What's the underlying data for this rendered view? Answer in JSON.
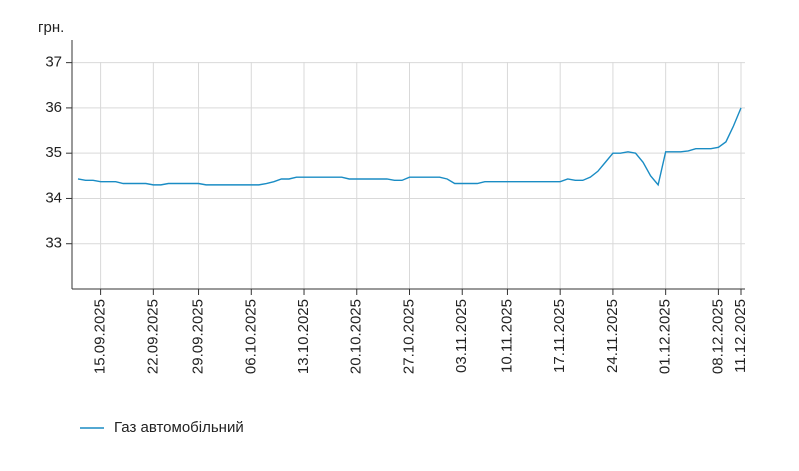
{
  "chart_data": {
    "type": "line",
    "y_label": "грн.",
    "x": [
      "12.09.2025",
      "13.09.2025",
      "14.09.2025",
      "15.09.2025",
      "16.09.2025",
      "17.09.2025",
      "18.09.2025",
      "19.09.2025",
      "20.09.2025",
      "21.09.2025",
      "22.09.2025",
      "23.09.2025",
      "24.09.2025",
      "26.09.2025",
      "27.09.2025",
      "28.09.2025",
      "29.09.2025",
      "30.09.2025",
      "01.10.2025",
      "02.10.2025",
      "03.10.2025",
      "04.10.2025",
      "05.10.2025",
      "06.10.2025",
      "07.10.2025",
      "08.10.2025",
      "09.10.2025",
      "10.10.2025",
      "11.10.2025",
      "12.10.2025",
      "13.10.2025",
      "14.10.2025",
      "15.10.2025",
      "16.10.2025",
      "17.10.2025",
      "18.10.2025",
      "19.10.2025",
      "20.10.2025",
      "21.10.2025",
      "22.10.2025",
      "23.10.2025",
      "24.10.2025",
      "25.10.2025",
      "26.10.2025",
      "27.10.2025",
      "28.10.2025",
      "29.10.2025",
      "30.10.2025",
      "31.10.2025",
      "01.11.2025",
      "02.11.2025",
      "03.11.2025",
      "04.11.2025",
      "05.11.2025",
      "07.11.2025",
      "08.11.2025",
      "09.11.2025",
      "10.11.2025",
      "11.11.2025",
      "12.11.2025",
      "13.11.2025",
      "14.11.2025",
      "15.11.2025",
      "16.11.2025",
      "17.11.2025",
      "18.11.2025",
      "19.11.2025",
      "20.11.2025",
      "21.11.2025",
      "22.11.2025",
      "23.11.2025",
      "24.11.2025",
      "25.11.2025",
      "26.11.2025",
      "27.11.2025",
      "28.11.2025",
      "29.11.2025",
      "30.11.2025",
      "01.12.2025",
      "02.12.2025",
      "03.12.2025",
      "04.12.2025",
      "05.12.2025",
      "06.12.2025",
      "07.12.2025",
      "08.12.2025",
      "09.12.2025",
      "10.12.2025",
      "11.12.2025"
    ],
    "series": [
      {
        "name": "Газ автомобільний",
        "color": "#1a8cc4",
        "values": [
          34.43,
          34.4,
          34.4,
          34.37,
          34.37,
          34.37,
          34.33,
          34.33,
          34.33,
          34.33,
          34.3,
          34.3,
          34.33,
          34.33,
          34.33,
          34.33,
          34.33,
          34.3,
          34.3,
          34.3,
          34.3,
          34.3,
          34.3,
          34.3,
          34.3,
          34.33,
          34.37,
          34.43,
          34.43,
          34.47,
          34.47,
          34.47,
          34.47,
          34.47,
          34.47,
          34.47,
          34.43,
          34.43,
          34.43,
          34.43,
          34.43,
          34.43,
          34.4,
          34.4,
          34.47,
          34.47,
          34.47,
          34.47,
          34.47,
          34.43,
          34.33,
          34.33,
          34.33,
          34.33,
          34.37,
          34.37,
          34.37,
          34.37,
          34.37,
          34.37,
          34.37,
          34.37,
          34.37,
          34.37,
          34.37,
          34.43,
          34.4,
          34.4,
          34.47,
          34.6,
          34.8,
          35.0,
          35.0,
          35.03,
          35.0,
          34.8,
          34.5,
          34.3,
          35.03,
          35.03,
          35.03,
          35.05,
          35.1,
          35.1,
          35.1,
          35.13,
          35.25,
          35.6,
          36.0
        ]
      }
    ],
    "xticks": [
      "15.09.2025",
      "22.09.2025",
      "29.09.2025",
      "06.10.2025",
      "13.10.2025",
      "20.10.2025",
      "27.10.2025",
      "03.11.2025",
      "10.11.2025",
      "17.11.2025",
      "24.11.2025",
      "01.12.2025",
      "08.12.2025",
      "11.12.2025"
    ],
    "ylim": [
      32,
      37.5
    ],
    "yticks": [
      33,
      34,
      35,
      36,
      37
    ],
    "grid": true
  }
}
